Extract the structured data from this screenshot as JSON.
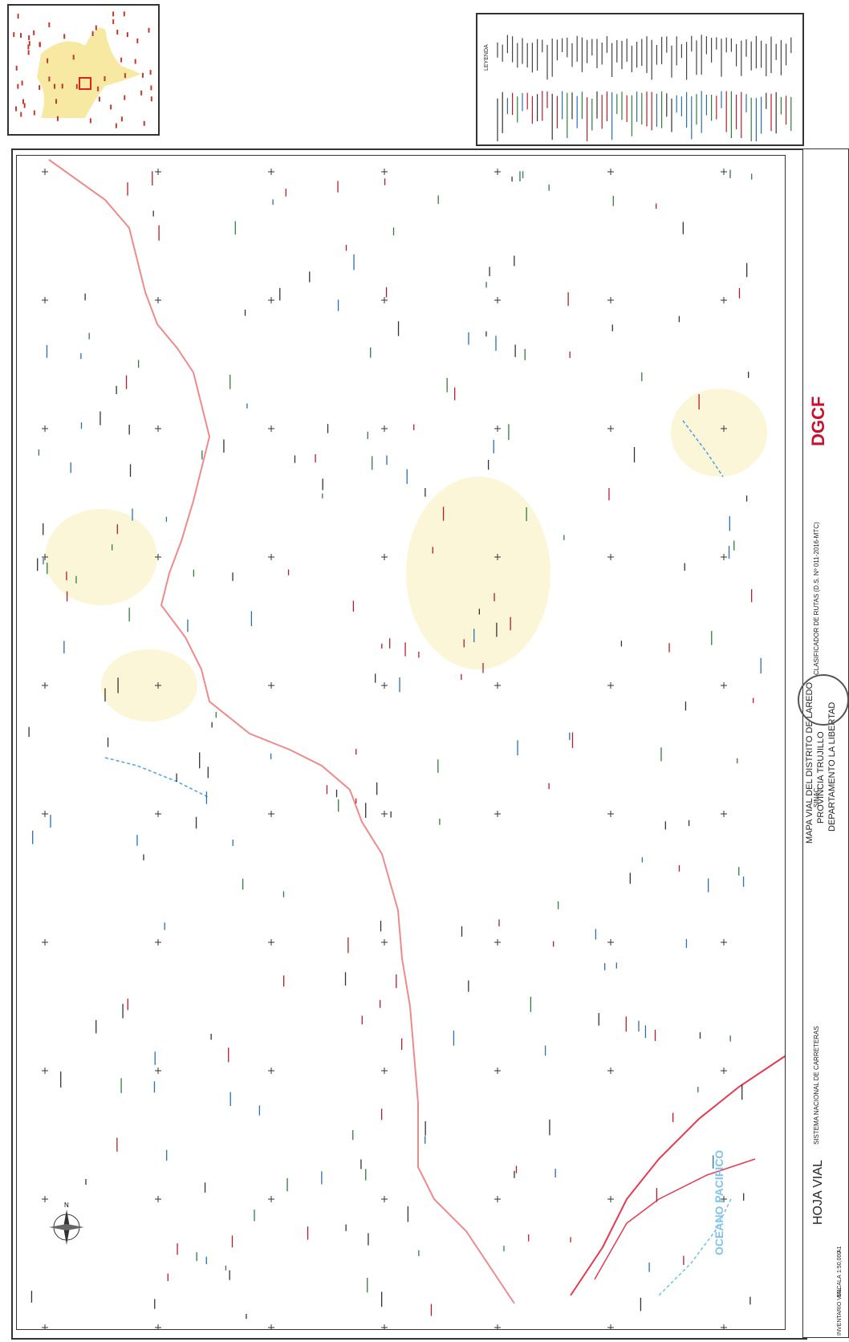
{
  "title_block": {
    "logo": "DGCF",
    "sheet_label": "HOJA VIAL",
    "system_name": "SISTEMA NACIONAL DE CARRETERAS",
    "sinac": "SINAC",
    "classifier": "CLASIFICADOR DE RUTAS (D.S. Nº 011-2016-MTC)",
    "map_title": "MAPA VIAL DEL DISTRITO DE LAREDO",
    "province": "PROVINCIA TRUJILLO",
    "department": "DEPARTAMENTO LA LIBERTAD",
    "scale_label": "ESCALA",
    "scale_value": "1:50,000",
    "paper": "A1",
    "inventory": "INVENTARIO VIAL"
  },
  "map": {
    "ocean_label": "OCEANO PACIFICO",
    "north_arrow": "N"
  },
  "legend": {
    "title": "LEYENDA"
  },
  "colors": {
    "national_route": "#e8384f",
    "departmental_route": "#f08a8a",
    "neighborhood_route": "#4aa3df",
    "urban_area": "#fbf6d8",
    "label_dark": "#333333",
    "label_green": "#2f7d3a",
    "label_blue": "#2a6fb0",
    "label_red": "#b71c2a"
  }
}
